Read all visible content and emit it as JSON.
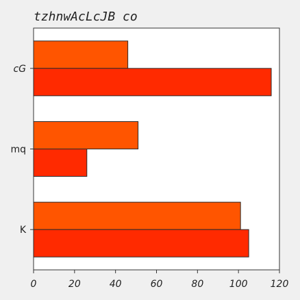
{
  "chart_data": {
    "type": "bar",
    "orientation": "horizontal",
    "title": "tzhnwAcLcJB co",
    "categories": [
      "K",
      "mq",
      "cG"
    ],
    "series": [
      {
        "values": [
          101,
          51,
          46
        ],
        "color": "#ff5500"
      },
      {
        "values": [
          105,
          26,
          116
        ],
        "color": "#ff2a00"
      }
    ],
    "xlim": [
      0,
      120
    ],
    "xticks": [
      0,
      20,
      40,
      60,
      80,
      100,
      120
    ],
    "xlabel": "",
    "ylabel": "",
    "grid": false,
    "legend": "none"
  }
}
